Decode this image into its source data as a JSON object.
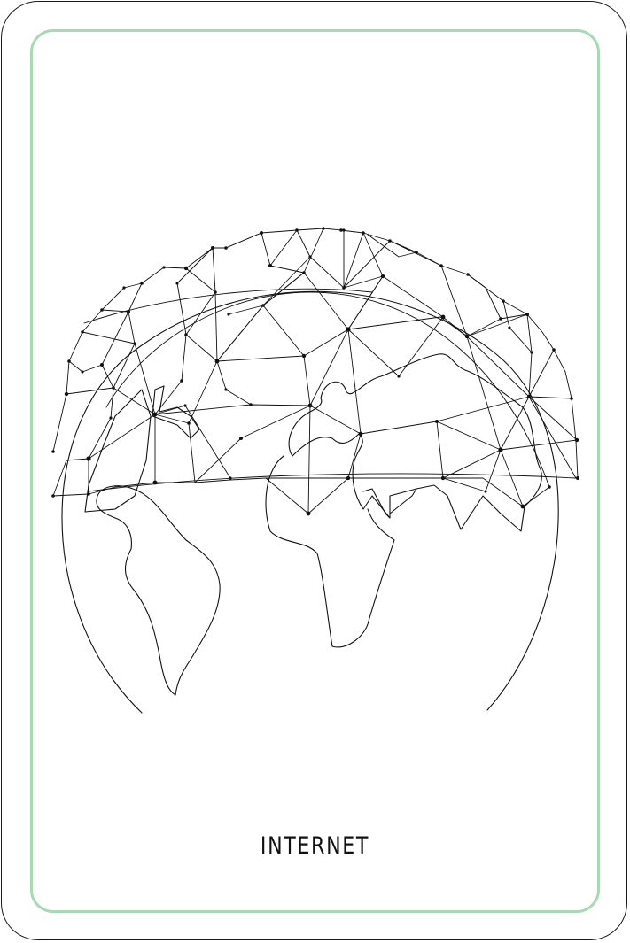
{
  "card": {
    "caption": "INTERNET",
    "frame_color": "#a8d8b4",
    "border_color": "#1a1a1a",
    "illustration": "globe-network-icon"
  }
}
